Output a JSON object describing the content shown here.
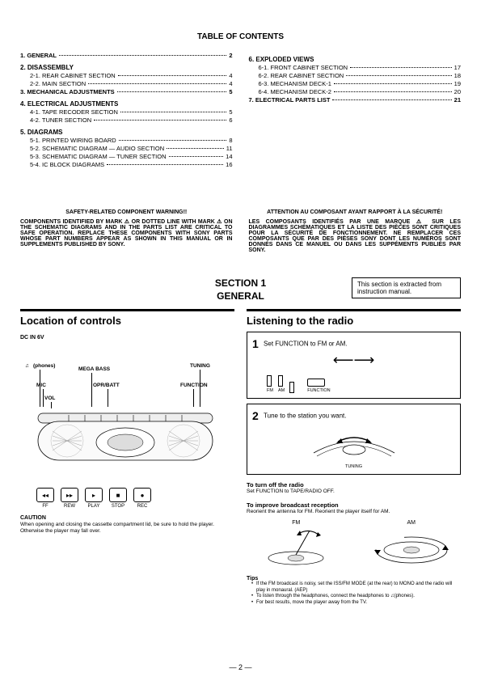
{
  "toc": {
    "title": "TABLE OF CONTENTS",
    "left": [
      {
        "type": "sec",
        "label": "1. GENERAL",
        "page": "2",
        "entry": true
      },
      {
        "type": "sec",
        "label": "2. DISASSEMBLY"
      },
      {
        "type": "sub",
        "label": "2-1. REAR CABINET SECTION",
        "page": "4"
      },
      {
        "type": "sub",
        "label": "2-2. MAIN SECTION",
        "page": "4"
      },
      {
        "type": "sec",
        "label": "3. MECHANICAL ADJUSTMENTS",
        "page": "5",
        "entry": true
      },
      {
        "type": "sec",
        "label": "4. ELECTRICAL ADJUSTMENTS"
      },
      {
        "type": "sub",
        "label": "4-1. TAPE RECODER SECTION",
        "page": "5"
      },
      {
        "type": "sub",
        "label": "4-2. TUNER SECTION",
        "page": "6"
      },
      {
        "type": "sec",
        "label": "5. DIAGRAMS"
      },
      {
        "type": "sub",
        "label": "5-1. PRINTED WIRING BOARD",
        "page": "8"
      },
      {
        "type": "sub",
        "label": "5-2. SCHEMATIC DIAGRAM — AUDIO SECTION",
        "page": "11"
      },
      {
        "type": "sub",
        "label": "5-3. SCHEMATIC DIAGRAM — TUNER SECTION",
        "page": "14"
      },
      {
        "type": "sub",
        "label": "5-4. IC BLOCK DIAGRAMS",
        "page": "16"
      }
    ],
    "right": [
      {
        "type": "sec",
        "label": "6. EXPLODED VIEWS"
      },
      {
        "type": "sub",
        "label": "6-1. FRONT CABINET SECTION",
        "page": "17"
      },
      {
        "type": "sub",
        "label": "6-2. REAR CABINET SECTION",
        "page": "18"
      },
      {
        "type": "sub",
        "label": "6-3. MECHANISM DECK-1",
        "page": "19"
      },
      {
        "type": "sub",
        "label": "6-4. MECHANISM DECK-2",
        "page": "20"
      },
      {
        "type": "sec",
        "label": "7. ELECTRICAL PARTS LIST",
        "page": "21",
        "entry": true
      }
    ]
  },
  "warnings": {
    "en_title": "SAFETY-RELATED COMPONENT WARNING!!",
    "en_body": "COMPONENTS IDENTIFIED BY MARK ⚠ OR DOTTED LINE WITH MARK ⚠ ON THE SCHEMATIC DIAGRAMS AND IN THE PARTS LIST ARE CRITICAL TO SAFE OPERATION. REPLACE THESE COMPONENTS WITH SONY PARTS WHOSE PART NUMBERS APPEAR AS SHOWN IN THIS MANUAL OR IN SUPPLEMENTS PUBLISHED BY SONY.",
    "fr_title": "ATTENTION AU COMPOSANT AYANT RAPPORT À LA SÉCURITÉ!",
    "fr_body": "LES COMPOSANTS IDENTIFIÉS PAR UNE MARQUE ⚠ SUR LES DIAGRAMMES SCHÉMATIQUES ET LA LISTE DES PIÈCES SONT CRITIQUES POUR LA SÉCURITÉ DE FONCTIONNEMENT. NE REMPLACER CES COMPOSANTS QUE PAR DES PIÈSES SONY DONT LES NUMÉROS SONT DONNÉS DANS CE MANUEL OU DANS LES SUPPÉMENTS PUBLIÉS PAR SONY."
  },
  "section": {
    "heading_l1": "SECTION 1",
    "heading_l2": "GENERAL",
    "extract_note": "This section is extracted from instruction manual."
  },
  "left_panel": {
    "title": "Location of controls",
    "dc_label": "DC IN 6V",
    "phones": "(phones)",
    "mega_bass": "MEGA BASS",
    "tuning": "TUNING",
    "mic": "MIC",
    "opr_batt": "OPR/BATT",
    "function": "FUNCTION",
    "vol": "VOL",
    "buttons": [
      "◂◂",
      "▸▸",
      "▸",
      "■",
      "●"
    ],
    "btn_labels": [
      "FF",
      "REW",
      "PLAY",
      "STOP",
      "REC"
    ],
    "caution": "CAUTION",
    "caution_text": "When opening and closing the cassette compartment lid, be sure to hold the player. Otherwise the player may fall over."
  },
  "right_panel": {
    "title": "Listening to the radio",
    "step1": "Set FUNCTION to FM or AM.",
    "step2": "Tune to the station you want.",
    "sw_labels": [
      "FM",
      "AM",
      "FUNCTION"
    ],
    "tuning_lbl": "TUNING",
    "turnoff_head": "To turn off the radio",
    "turnoff_text": "Set FUNCTION to TAPE/RADIO OFF.",
    "improve_head": "To improve broadcast reception",
    "improve_text": "Reorient the antenna for FM. Reorient the player itself for AM.",
    "fm": "FM",
    "am": "AM",
    "tips_head": "Tips",
    "tips": [
      "If the FM broadcast is noisy, set the ISS/FM MODE (at the rear) to MONO and the radio will play in monaural. (AEP)",
      "To listen through the headphones, connect the headphones to ♫(phones).",
      "For best results, move the player away from the TV."
    ]
  },
  "page_number": "— 2 —"
}
